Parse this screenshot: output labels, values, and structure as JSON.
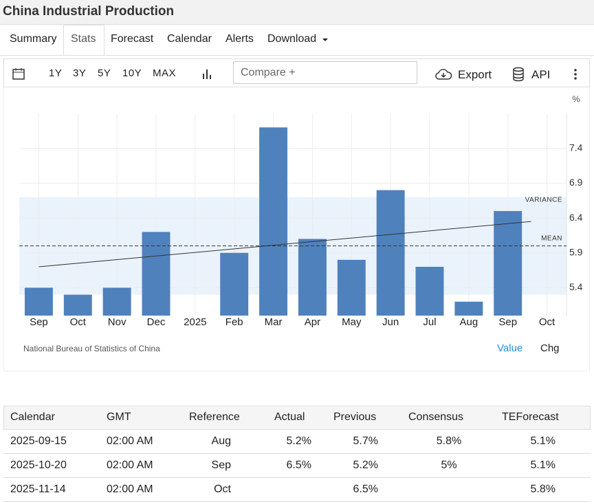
{
  "header": {
    "title": "China Industrial Production"
  },
  "tabs": [
    "Summary",
    "Stats",
    "Forecast",
    "Calendar",
    "Alerts",
    "Download"
  ],
  "toolbar": {
    "ranges": [
      "1Y",
      "3Y",
      "5Y",
      "10Y",
      "MAX"
    ],
    "compare": "Compare +",
    "export": "Export",
    "api": "API"
  },
  "chart_data": {
    "type": "bar",
    "unit": "%",
    "categories": [
      "Sep",
      "Oct",
      "Nov",
      "Dec",
      "2025",
      "Feb",
      "Mar",
      "Apr",
      "May",
      "Jun",
      "Jul",
      "Aug",
      "Sep",
      "Oct"
    ],
    "values": [
      5.4,
      5.3,
      5.4,
      6.2,
      null,
      5.9,
      7.7,
      6.1,
      5.8,
      6.8,
      5.7,
      5.2,
      6.5,
      null
    ],
    "color": "#4f81bd",
    "ylim": [
      5.0,
      7.9
    ],
    "yticks": [
      5.4,
      5.9,
      6.4,
      6.9,
      7.4
    ],
    "grid": true,
    "mean": 6.0,
    "mean_label": "MEAN",
    "variance_band": [
      5.3,
      6.7
    ],
    "variance_label": "VARIANCE",
    "trend": [
      5.7,
      6.35
    ]
  },
  "source": "National Bureau of Statistics of China",
  "chart_modes": [
    "Value",
    "Chg"
  ],
  "table": {
    "columns": [
      "Calendar",
      "GMT",
      "Reference",
      "Actual",
      "Previous",
      "Consensus",
      "TEForecast"
    ],
    "rows": [
      [
        "2025-09-15",
        "02:00 AM",
        "Aug",
        "5.2%",
        "5.7%",
        "5.8%",
        "5.1%"
      ],
      [
        "2025-10-20",
        "02:00 AM",
        "Sep",
        "6.5%",
        "5.2%",
        "5%",
        "5.1%"
      ],
      [
        "2025-11-14",
        "02:00 AM",
        "Oct",
        null,
        "6.5%",
        null,
        "5.8%"
      ]
    ]
  }
}
